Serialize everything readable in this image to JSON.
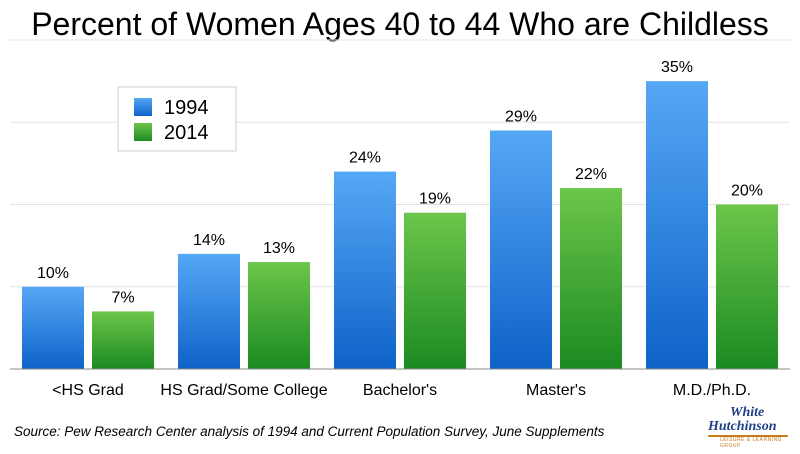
{
  "chart_data": {
    "type": "bar",
    "title": "Percent of Women Ages 40 to 44 Who are Childless",
    "categories": [
      "<HS Grad",
      "HS Grad/Some College",
      "Bachelor's",
      "Master's",
      "M.D./Ph.D."
    ],
    "series": [
      {
        "name": "1994",
        "values": [
          10,
          14,
          24,
          29,
          35
        ],
        "labels": [
          "10%",
          "14%",
          "24%",
          "29%",
          "35%"
        ],
        "color": "#2a7fe0"
      },
      {
        "name": "2014",
        "values": [
          7,
          13,
          19,
          22,
          20
        ],
        "labels": [
          "7%",
          "13%",
          "19%",
          "22%",
          "20%"
        ],
        "color": "#2fa52f"
      }
    ],
    "xlabel": "",
    "ylabel": "",
    "ylim": [
      0,
      40
    ],
    "grid": true,
    "legend_position": "top-left"
  },
  "source": "Source: Pew Research Center analysis of 1994 and Current Population Survey, June Supplements",
  "logo": {
    "line1": "White",
    "line2": "Hutchinson",
    "tagline": "LEISURE & LEARNING GROUP"
  }
}
